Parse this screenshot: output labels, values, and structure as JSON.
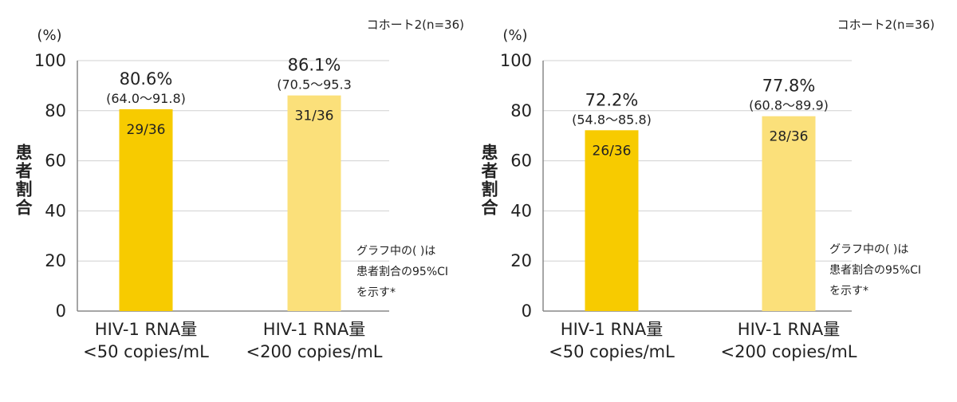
{
  "chart_data": [
    {
      "type": "bar",
      "cohort_label": "コホート2(n=36)",
      "unit": "(%)",
      "ylabel": "患者割合",
      "ylim": [
        0,
        100
      ],
      "yticks": [
        "0",
        "20",
        "40",
        "60",
        "80",
        "100"
      ],
      "categories": [
        {
          "line1": "HIV-1 RNA量",
          "line2": "<50 copies/mL"
        },
        {
          "line1": "HIV-1 RNA量",
          "line2": "<200 copies/mL"
        }
      ],
      "values": [
        80.6,
        86.1
      ],
      "value_labels": [
        "80.6%",
        "86.1%"
      ],
      "ci_labels": [
        "(64.0〜91.8)",
        "(70.5〜95.3"
      ],
      "fraction_labels": [
        "29/36",
        "31/36"
      ],
      "bar_colors": [
        "#F7CB00",
        "#FBE07A"
      ],
      "note_lines": [
        "グラフ中の( )は",
        "患者割合の95%CI",
        "を示す*"
      ],
      "grid": true
    },
    {
      "type": "bar",
      "cohort_label": "コホート2(n=36)",
      "unit": "(%)",
      "ylabel": "患者割合",
      "ylim": [
        0,
        100
      ],
      "yticks": [
        "0",
        "20",
        "40",
        "60",
        "80",
        "100"
      ],
      "categories": [
        {
          "line1": "HIV-1 RNA量",
          "line2": "<50 copies/mL"
        },
        {
          "line1": "HIV-1 RNA量",
          "line2": "<200 copies/mL"
        }
      ],
      "values": [
        72.2,
        77.8
      ],
      "value_labels": [
        "72.2%",
        "77.8%"
      ],
      "ci_labels": [
        "(54.8〜85.8)",
        "(60.8〜89.9)"
      ],
      "fraction_labels": [
        "26/36",
        "28/36"
      ],
      "bar_colors": [
        "#F7CB00",
        "#FBE07A"
      ],
      "note_lines": [
        "グラフ中の( )は",
        "患者割合の95%CI",
        "を示す*"
      ],
      "grid": true
    }
  ]
}
